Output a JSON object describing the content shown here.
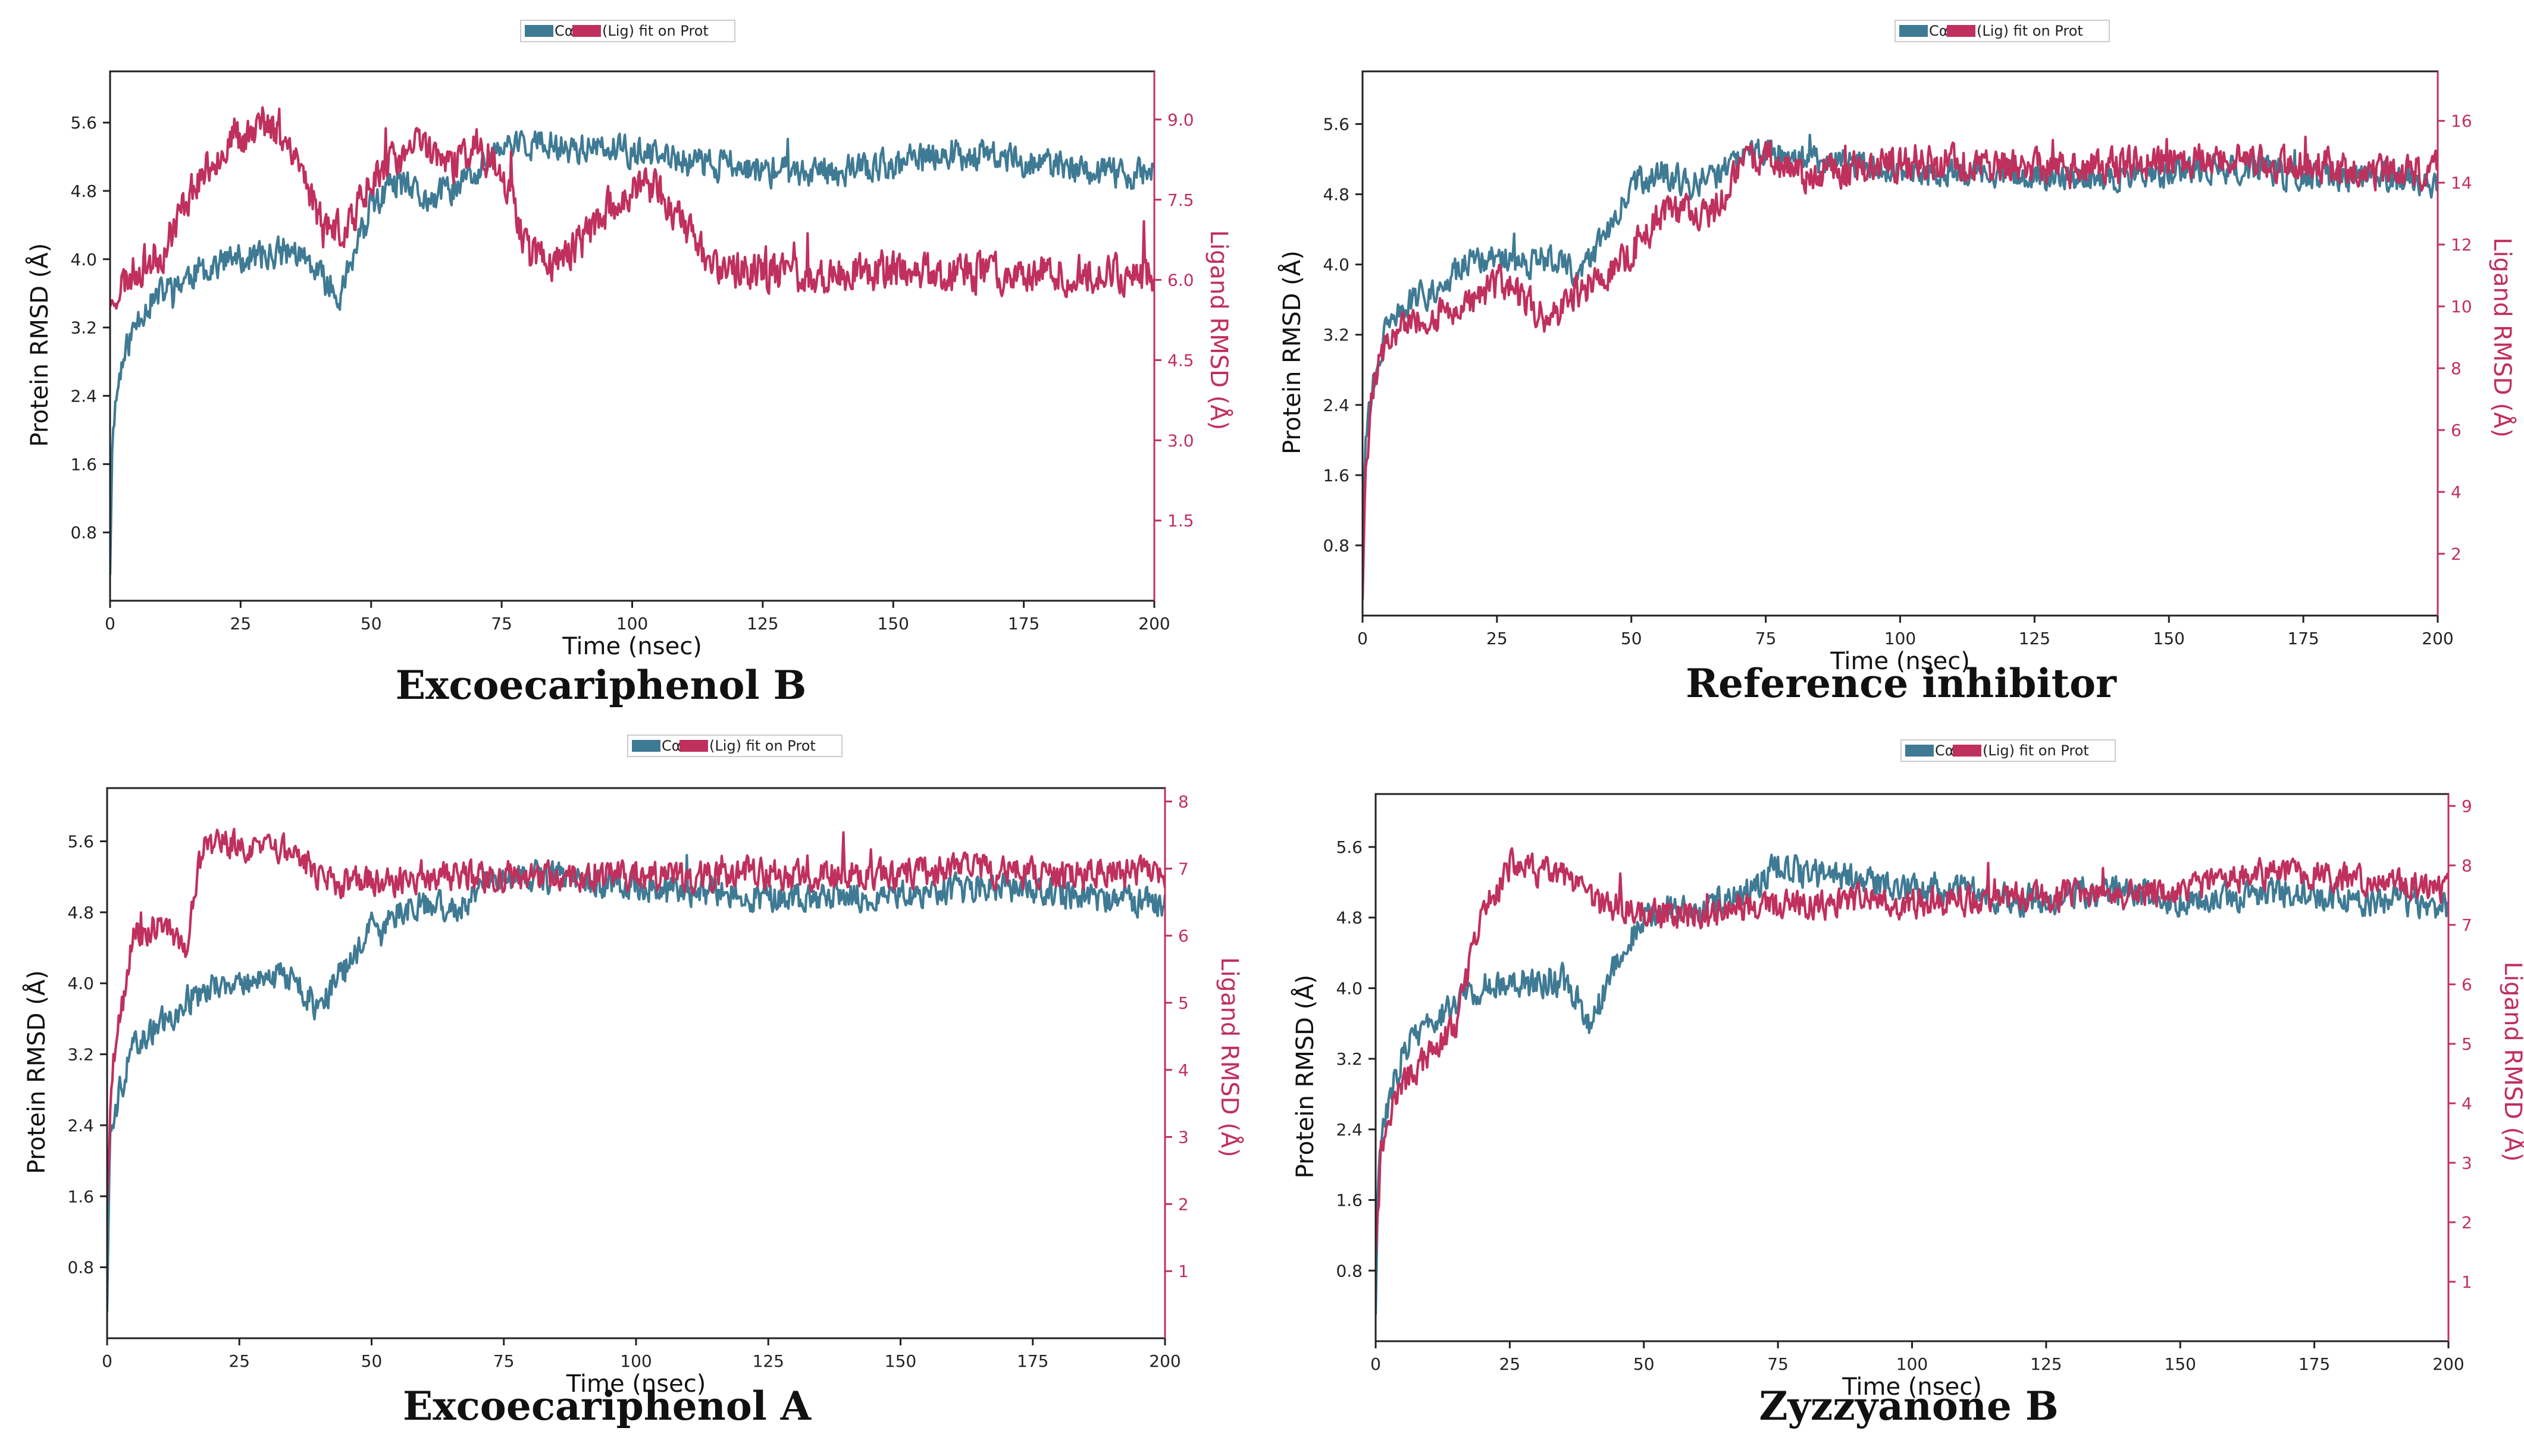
{
  "figure": {
    "series_colors": {
      "protein": "#3f7a94",
      "ligand": "#c0305c"
    }
  },
  "chart_data": [
    {
      "type": "line",
      "caption": "Excoecariphenol B",
      "legend": {
        "protein_label": "Cα",
        "ligand_label": "(Lig) fit on Prot",
        "placement": "top-center"
      },
      "xlabel": "Time (nsec)",
      "ylabel_left": "Protein RMSD (Å)",
      "ylabel_right": "Ligand RMSD (Å)",
      "xlim": [
        0,
        200
      ],
      "ylim_left": [
        0,
        6.2
      ],
      "ylim_right": [
        0,
        9.9
      ],
      "xticks": [
        0,
        25,
        50,
        75,
        100,
        125,
        150,
        175,
        200
      ],
      "xtick_labels": [
        "0",
        "25",
        "50",
        "75",
        "100",
        "125",
        "150",
        "175",
        "200"
      ],
      "yticks_left": [
        0.8,
        1.6,
        2.4,
        3.2,
        4.0,
        4.8,
        5.6
      ],
      "ytick_labels_left": [
        "0.8",
        "1.6",
        "2.4",
        "3.2",
        "4.0",
        "4.8",
        "5.6"
      ],
      "yticks_right": [
        1.5,
        3.0,
        4.5,
        6.0,
        7.5,
        9.0
      ],
      "ytick_labels_right": [
        "1.5",
        "3.0",
        "4.5",
        "6.0",
        "7.5",
        "9.0"
      ],
      "series": [
        {
          "name": "Cα",
          "axis": "left",
          "noise": 0.16,
          "seed": 11,
          "x": [
            0,
            0.5,
            2,
            4,
            6,
            10,
            15,
            20,
            25,
            30,
            35,
            40,
            44,
            50,
            55,
            60,
            65,
            70,
            75,
            80,
            90,
            100,
            110,
            120,
            130,
            140,
            150,
            160,
            170,
            180,
            190,
            200
          ],
          "y": [
            0.3,
            2.1,
            2.7,
            3.1,
            3.4,
            3.6,
            3.8,
            3.95,
            4.0,
            4.05,
            4.1,
            3.8,
            3.6,
            4.6,
            4.9,
            4.7,
            4.8,
            5.0,
            5.3,
            5.35,
            5.3,
            5.25,
            5.15,
            5.1,
            5.0,
            5.05,
            5.1,
            5.25,
            5.2,
            5.1,
            5.0,
            5.0
          ]
        },
        {
          "name": "(Lig) fit on Prot",
          "axis": "right",
          "noise": 0.32,
          "seed": 23,
          "x": [
            0,
            1,
            5,
            10,
            15,
            20,
            25,
            30,
            35,
            40,
            45,
            50,
            55,
            60,
            65,
            70,
            75,
            80,
            85,
            90,
            95,
            100,
            105,
            110,
            115,
            120,
            130,
            140,
            150,
            160,
            170,
            180,
            190,
            200
          ],
          "y": [
            5.5,
            5.8,
            6.2,
            6.5,
            7.6,
            8.3,
            8.7,
            8.9,
            8.5,
            7.2,
            6.8,
            8.0,
            8.2,
            8.6,
            8.1,
            8.5,
            8.1,
            6.6,
            6.3,
            6.7,
            7.3,
            7.7,
            7.7,
            7.0,
            6.3,
            6.2,
            6.1,
            6.1,
            6.2,
            6.1,
            6.15,
            6.1,
            6.15,
            6.1
          ]
        }
      ]
    },
    {
      "type": "line",
      "caption": "Reference inhibitor",
      "legend": {
        "protein_label": "Cα",
        "ligand_label": "(Lig) fit on Prot",
        "placement": "top-center"
      },
      "xlabel": "Time (nsec)",
      "ylabel_left": "Protein RMSD (Å)",
      "ylabel_right": "Ligand RMSD (Å)",
      "xlim": [
        0,
        200
      ],
      "ylim_left": [
        0,
        6.2
      ],
      "ylim_right": [
        0,
        17.6
      ],
      "xticks": [
        0,
        25,
        50,
        75,
        100,
        125,
        150,
        175,
        200
      ],
      "xtick_labels": [
        "0",
        "25",
        "50",
        "75",
        "100",
        "125",
        "150",
        "175",
        "200"
      ],
      "yticks_left": [
        0.8,
        1.6,
        2.4,
        3.2,
        4.0,
        4.8,
        5.6
      ],
      "ytick_labels_left": [
        "0.8",
        "1.6",
        "2.4",
        "3.2",
        "4.0",
        "4.8",
        "5.6"
      ],
      "yticks_right": [
        2,
        4,
        6,
        8,
        10,
        12,
        14,
        16
      ],
      "ytick_labels_right": [
        "2",
        "4",
        "6",
        "8",
        "10",
        "12",
        "14",
        "16"
      ],
      "series": [
        {
          "name": "Cα",
          "axis": "left",
          "noise": 0.15,
          "seed": 31,
          "x": [
            0,
            0.5,
            2,
            5,
            10,
            15,
            20,
            25,
            30,
            35,
            40,
            45,
            50,
            55,
            60,
            65,
            70,
            75,
            80,
            90,
            100,
            120,
            140,
            160,
            180,
            200
          ],
          "y": [
            0.2,
            2.0,
            2.6,
            3.4,
            3.6,
            3.8,
            4.0,
            4.1,
            4.0,
            4.1,
            3.9,
            4.3,
            4.9,
            5.1,
            4.9,
            5.0,
            5.2,
            5.3,
            5.2,
            5.15,
            5.1,
            5.0,
            5.0,
            5.1,
            5.0,
            4.95
          ]
        },
        {
          "name": "(Lig) fit on Prot",
          "axis": "right",
          "noise": 0.5,
          "seed": 47,
          "x": [
            0,
            0.5,
            2,
            5,
            10,
            15,
            20,
            25,
            30,
            35,
            40,
            45,
            50,
            55,
            60,
            65,
            70,
            75,
            80,
            90,
            100,
            110,
            120,
            130,
            140,
            150,
            160,
            170,
            180,
            190,
            200
          ],
          "y": [
            0.5,
            4.5,
            7.5,
            9.0,
            9.5,
            9.8,
            10.0,
            10.8,
            10.2,
            9.6,
            10.5,
            11.0,
            11.8,
            12.8,
            13.2,
            13.0,
            14.5,
            15.0,
            14.3,
            14.4,
            14.6,
            14.6,
            14.5,
            14.4,
            14.5,
            14.7,
            14.8,
            14.6,
            14.5,
            14.3,
            14.4
          ]
        }
      ]
    },
    {
      "type": "line",
      "caption": "Excoecariphenol A",
      "legend": {
        "protein_label": "Cα",
        "ligand_label": "(Lig) fit on Prot",
        "placement": "top-center"
      },
      "xlabel": "Time (nsec)",
      "ylabel_left": "Protein RMSD (Å)",
      "ylabel_right": "Ligand RMSD (Å)",
      "xlim": [
        0,
        200
      ],
      "ylim_left": [
        0,
        6.2
      ],
      "ylim_right": [
        0,
        8.2
      ],
      "xticks": [
        0,
        25,
        50,
        75,
        100,
        125,
        150,
        175,
        200
      ],
      "xtick_labels": [
        "0",
        "25",
        "50",
        "75",
        "100",
        "125",
        "150",
        "175",
        "200"
      ],
      "yticks_left": [
        0.8,
        1.6,
        2.4,
        3.2,
        4.0,
        4.8,
        5.6
      ],
      "ytick_labels_left": [
        "0.8",
        "1.6",
        "2.4",
        "3.2",
        "4.0",
        "4.8",
        "5.6"
      ],
      "yticks_right": [
        1,
        2,
        3,
        4,
        5,
        6,
        7,
        8
      ],
      "ytick_labels_right": [
        "1",
        "2",
        "3",
        "4",
        "5",
        "6",
        "7",
        "8"
      ],
      "series": [
        {
          "name": "Cα",
          "axis": "left",
          "noise": 0.15,
          "seed": 59,
          "x": [
            0,
            0.5,
            2,
            5,
            10,
            15,
            20,
            25,
            30,
            35,
            40,
            45,
            50,
            55,
            60,
            65,
            70,
            75,
            80,
            90,
            100,
            110,
            120,
            130,
            140,
            150,
            160,
            170,
            180,
            190,
            200
          ],
          "y": [
            0.3,
            2.2,
            2.7,
            3.3,
            3.55,
            3.8,
            4.0,
            4.0,
            4.05,
            4.1,
            3.7,
            4.2,
            4.6,
            4.8,
            4.9,
            4.85,
            5.0,
            5.25,
            5.2,
            5.15,
            5.1,
            5.05,
            5.0,
            4.95,
            5.0,
            5.0,
            5.05,
            5.1,
            5.0,
            4.95,
            4.9
          ]
        },
        {
          "name": "(Lig) fit on Prot",
          "axis": "right",
          "noise": 0.2,
          "seed": 71,
          "x": [
            0,
            1,
            3,
            5,
            10,
            15,
            18,
            20,
            25,
            30,
            35,
            40,
            45,
            50,
            60,
            70,
            80,
            90,
            100,
            110,
            120,
            130,
            140,
            150,
            160,
            170,
            180,
            190,
            200
          ],
          "y": [
            2.0,
            4.0,
            5.0,
            6.0,
            6.2,
            5.8,
            7.3,
            7.4,
            7.35,
            7.3,
            7.2,
            6.9,
            6.8,
            6.8,
            6.9,
            6.85,
            6.9,
            6.85,
            6.9,
            6.85,
            6.95,
            6.9,
            6.95,
            6.9,
            7.0,
            6.95,
            6.9,
            6.95,
            6.9
          ]
        }
      ]
    },
    {
      "type": "line",
      "caption": "Zyzzyanone B",
      "legend": {
        "protein_label": "Cα",
        "ligand_label": "(Lig) fit on Prot",
        "placement": "top-center"
      },
      "xlabel": "Time (nsec)",
      "ylabel_left": "Protein RMSD (Å)",
      "ylabel_right": "Ligand RMSD (Å)",
      "xlim": [
        0,
        200
      ],
      "ylim_left": [
        0,
        6.2
      ],
      "ylim_right": [
        0,
        9.2
      ],
      "xticks": [
        0,
        25,
        50,
        75,
        100,
        125,
        150,
        175,
        200
      ],
      "xtick_labels": [
        "0",
        "25",
        "50",
        "75",
        "100",
        "125",
        "150",
        "175",
        "200"
      ],
      "yticks_left": [
        0.8,
        1.6,
        2.4,
        3.2,
        4.0,
        4.8,
        5.6
      ],
      "ytick_labels_left": [
        "0.8",
        "1.6",
        "2.4",
        "3.2",
        "4.0",
        "4.8",
        "5.6"
      ],
      "yticks_right": [
        1,
        2,
        3,
        4,
        5,
        6,
        7,
        8,
        9
      ],
      "ytick_labels_right": [
        "1",
        "2",
        "3",
        "4",
        "5",
        "6",
        "7",
        "8",
        "9"
      ],
      "series": [
        {
          "name": "Cα",
          "axis": "left",
          "noise": 0.15,
          "seed": 83,
          "x": [
            0,
            0.5,
            2,
            5,
            10,
            15,
            20,
            25,
            30,
            35,
            40,
            45,
            50,
            55,
            60,
            65,
            70,
            75,
            80,
            90,
            100,
            110,
            120,
            130,
            140,
            150,
            160,
            170,
            180,
            190,
            200
          ],
          "y": [
            0.3,
            2.0,
            2.6,
            3.3,
            3.6,
            3.85,
            4.0,
            4.1,
            4.05,
            4.1,
            3.6,
            4.3,
            4.8,
            4.9,
            4.85,
            5.0,
            5.1,
            5.4,
            5.3,
            5.25,
            5.1,
            5.1,
            5.0,
            5.05,
            5.1,
            5.0,
            5.05,
            5.1,
            5.0,
            5.0,
            4.9
          ]
        },
        {
          "name": "(Lig) fit on Prot",
          "axis": "right",
          "noise": 0.22,
          "seed": 97,
          "x": [
            0,
            1,
            3,
            5,
            10,
            15,
            18,
            20,
            25,
            30,
            35,
            40,
            45,
            50,
            60,
            70,
            80,
            90,
            100,
            110,
            120,
            130,
            140,
            150,
            160,
            170,
            180,
            190,
            200
          ],
          "y": [
            1.5,
            3.2,
            4.0,
            4.3,
            4.8,
            5.3,
            6.5,
            7.2,
            8.0,
            7.9,
            7.8,
            7.4,
            7.3,
            7.2,
            7.2,
            7.3,
            7.3,
            7.4,
            7.35,
            7.4,
            7.45,
            7.5,
            7.5,
            7.55,
            7.8,
            7.9,
            7.8,
            7.7,
            7.6
          ]
        }
      ]
    }
  ]
}
